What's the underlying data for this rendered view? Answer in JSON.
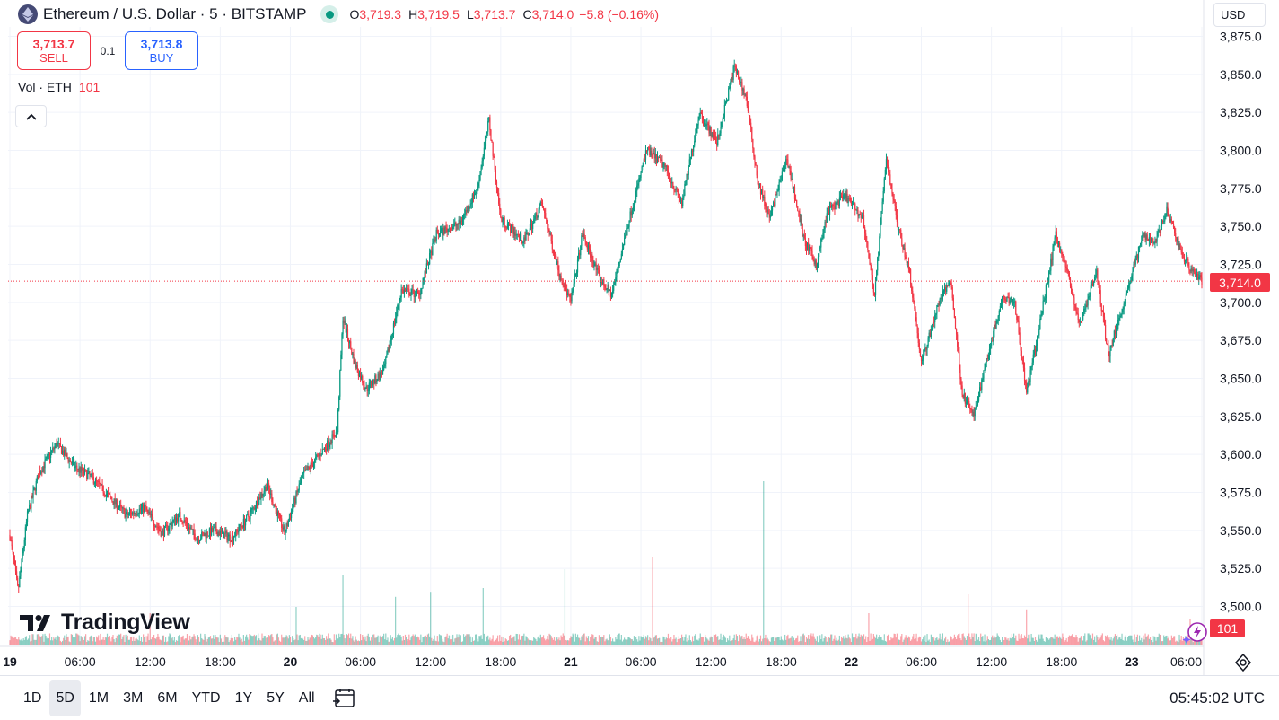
{
  "header": {
    "symbol_title": "Ethereum / U.S. Dollar · 5 · BITSTAMP",
    "ohlc": [
      {
        "key": "O",
        "value": "3,719.3"
      },
      {
        "key": "H",
        "value": "3,719.5"
      },
      {
        "key": "L",
        "value": "3,713.7"
      },
      {
        "key": "C",
        "value": "3,714.0"
      }
    ],
    "change": "−5.8 (−0.16%)",
    "icons": {
      "logo": "ethereum-logo-icon",
      "status": "market-open-dot-icon"
    }
  },
  "trade": {
    "sell_price": "3,713.7",
    "sell_label": "SELL",
    "spread": "0.1",
    "buy_price": "3,713.8",
    "buy_label": "BUY"
  },
  "volume_legend": {
    "label": "Vol · ETH",
    "value": "101"
  },
  "currency_button": "USD",
  "last_price_tag": "3,714.0",
  "volume_tag": "101",
  "brand": "TradingView",
  "bottom_bar": {
    "ranges": [
      "1D",
      "5D",
      "1M",
      "3M",
      "6M",
      "YTD",
      "1Y",
      "5Y",
      "All"
    ],
    "active_range": "5D",
    "clock": "05:45:02 UTC"
  },
  "colors": {
    "up": "#089981",
    "down": "#f23645",
    "grid": "#f0f3fa",
    "text": "#131722",
    "buy": "#2962ff"
  },
  "chart_data": {
    "type": "candlestick",
    "title": "Ethereum / U.S. Dollar · 5 · BITSTAMP",
    "interval": "5",
    "y_axis": {
      "side": "right",
      "ylim": [
        3487.5,
        3877.5
      ],
      "tick_labels": [
        "3,875.0",
        "3,850.0",
        "3,825.0",
        "3,800.0",
        "3,775.0",
        "3,750.0",
        "3,725.0",
        "3,700.0",
        "3,675.0",
        "3,650.0",
        "3,625.0",
        "3,600.0",
        "3,575.0",
        "3,550.0",
        "3,525.0",
        "3,500.0"
      ],
      "tick_values": [
        3875,
        3850,
        3825,
        3800,
        3775,
        3750,
        3725,
        3700,
        3675,
        3650,
        3625,
        3600,
        3575,
        3550,
        3525,
        3500
      ]
    },
    "x_axis": {
      "tick_labels": [
        "19",
        "06:00",
        "12:00",
        "18:00",
        "20",
        "06:00",
        "12:00",
        "18:00",
        "21",
        "06:00",
        "12:00",
        "18:00",
        "22",
        "06:00",
        "12:00",
        "18:00",
        "23",
        "06:00"
      ],
      "day_labels": [
        "19",
        "20",
        "21",
        "22",
        "23"
      ],
      "tick_hours": [
        0,
        6,
        12,
        18,
        24,
        30,
        36,
        42,
        48,
        54,
        60,
        66,
        72,
        78,
        84,
        90,
        96,
        102
      ],
      "x_range_hours": [
        0,
        102.2
      ]
    },
    "grid": true,
    "last_price": 3714.0,
    "price_path": [
      {
        "h": 0.0,
        "p": 3547
      },
      {
        "h": 0.7,
        "p": 3510
      },
      {
        "h": 1.5,
        "p": 3560
      },
      {
        "h": 2.5,
        "p": 3588
      },
      {
        "h": 4.0,
        "p": 3607
      },
      {
        "h": 5.5,
        "p": 3592
      },
      {
        "h": 7.0,
        "p": 3585
      },
      {
        "h": 8.5,
        "p": 3572
      },
      {
        "h": 10.0,
        "p": 3560
      },
      {
        "h": 11.5,
        "p": 3565
      },
      {
        "h": 13.0,
        "p": 3548
      },
      {
        "h": 14.5,
        "p": 3560
      },
      {
        "h": 16.0,
        "p": 3545
      },
      {
        "h": 17.5,
        "p": 3550
      },
      {
        "h": 19.0,
        "p": 3545
      },
      {
        "h": 20.5,
        "p": 3560
      },
      {
        "h": 22.0,
        "p": 3580
      },
      {
        "h": 23.5,
        "p": 3548
      },
      {
        "h": 25.0,
        "p": 3585
      },
      {
        "h": 26.5,
        "p": 3600
      },
      {
        "h": 28.0,
        "p": 3615
      },
      {
        "h": 28.5,
        "p": 3690
      },
      {
        "h": 29.5,
        "p": 3660
      },
      {
        "h": 30.5,
        "p": 3643
      },
      {
        "h": 32.0,
        "p": 3655
      },
      {
        "h": 33.5,
        "p": 3708
      },
      {
        "h": 35.0,
        "p": 3705
      },
      {
        "h": 36.5,
        "p": 3745
      },
      {
        "h": 38.5,
        "p": 3752
      },
      {
        "h": 40.0,
        "p": 3775
      },
      {
        "h": 41.0,
        "p": 3820
      },
      {
        "h": 42.0,
        "p": 3755
      },
      {
        "h": 44.0,
        "p": 3740
      },
      {
        "h": 45.5,
        "p": 3765
      },
      {
        "h": 47.0,
        "p": 3720
      },
      {
        "h": 48.0,
        "p": 3700
      },
      {
        "h": 49.0,
        "p": 3745
      },
      {
        "h": 50.5,
        "p": 3715
      },
      {
        "h": 51.5,
        "p": 3705
      },
      {
        "h": 53.0,
        "p": 3755
      },
      {
        "h": 54.5,
        "p": 3800
      },
      {
        "h": 56.0,
        "p": 3790
      },
      {
        "h": 57.5,
        "p": 3765
      },
      {
        "h": 59.0,
        "p": 3825
      },
      {
        "h": 60.5,
        "p": 3805
      },
      {
        "h": 62.0,
        "p": 3855
      },
      {
        "h": 63.0,
        "p": 3835
      },
      {
        "h": 64.0,
        "p": 3780
      },
      {
        "h": 65.0,
        "p": 3755
      },
      {
        "h": 66.5,
        "p": 3795
      },
      {
        "h": 68.0,
        "p": 3740
      },
      {
        "h": 69.0,
        "p": 3725
      },
      {
        "h": 70.0,
        "p": 3760
      },
      {
        "h": 71.5,
        "p": 3770
      },
      {
        "h": 73.0,
        "p": 3755
      },
      {
        "h": 74.0,
        "p": 3705
      },
      {
        "h": 75.0,
        "p": 3795
      },
      {
        "h": 76.0,
        "p": 3750
      },
      {
        "h": 77.0,
        "p": 3720
      },
      {
        "h": 78.0,
        "p": 3660
      },
      {
        "h": 79.5,
        "p": 3700
      },
      {
        "h": 80.5,
        "p": 3715
      },
      {
        "h": 81.5,
        "p": 3640
      },
      {
        "h": 82.5,
        "p": 3625
      },
      {
        "h": 83.5,
        "p": 3660
      },
      {
        "h": 85.0,
        "p": 3705
      },
      {
        "h": 86.0,
        "p": 3700
      },
      {
        "h": 87.0,
        "p": 3640
      },
      {
        "h": 88.0,
        "p": 3680
      },
      {
        "h": 89.5,
        "p": 3745
      },
      {
        "h": 90.5,
        "p": 3720
      },
      {
        "h": 91.5,
        "p": 3685
      },
      {
        "h": 93.0,
        "p": 3720
      },
      {
        "h": 94.0,
        "p": 3665
      },
      {
        "h": 95.5,
        "p": 3705
      },
      {
        "h": 97.0,
        "p": 3745
      },
      {
        "h": 98.0,
        "p": 3740
      },
      {
        "h": 99.0,
        "p": 3760
      },
      {
        "h": 100.5,
        "p": 3728
      },
      {
        "h": 102.0,
        "p": 3714
      }
    ],
    "volume_spikes": [
      {
        "h": 12.0,
        "v": 25
      },
      {
        "h": 24.5,
        "v": 30
      },
      {
        "h": 28.5,
        "v": 55
      },
      {
        "h": 33.0,
        "v": 38
      },
      {
        "h": 36.0,
        "v": 42
      },
      {
        "h": 40.5,
        "v": 45
      },
      {
        "h": 47.5,
        "v": 60
      },
      {
        "h": 55.0,
        "v": 70
      },
      {
        "h": 64.5,
        "v": 130
      },
      {
        "h": 73.5,
        "v": 25
      },
      {
        "h": 82.0,
        "v": 40
      },
      {
        "h": 87.0,
        "v": 28
      },
      {
        "h": 101.0,
        "v": 20
      }
    ]
  }
}
